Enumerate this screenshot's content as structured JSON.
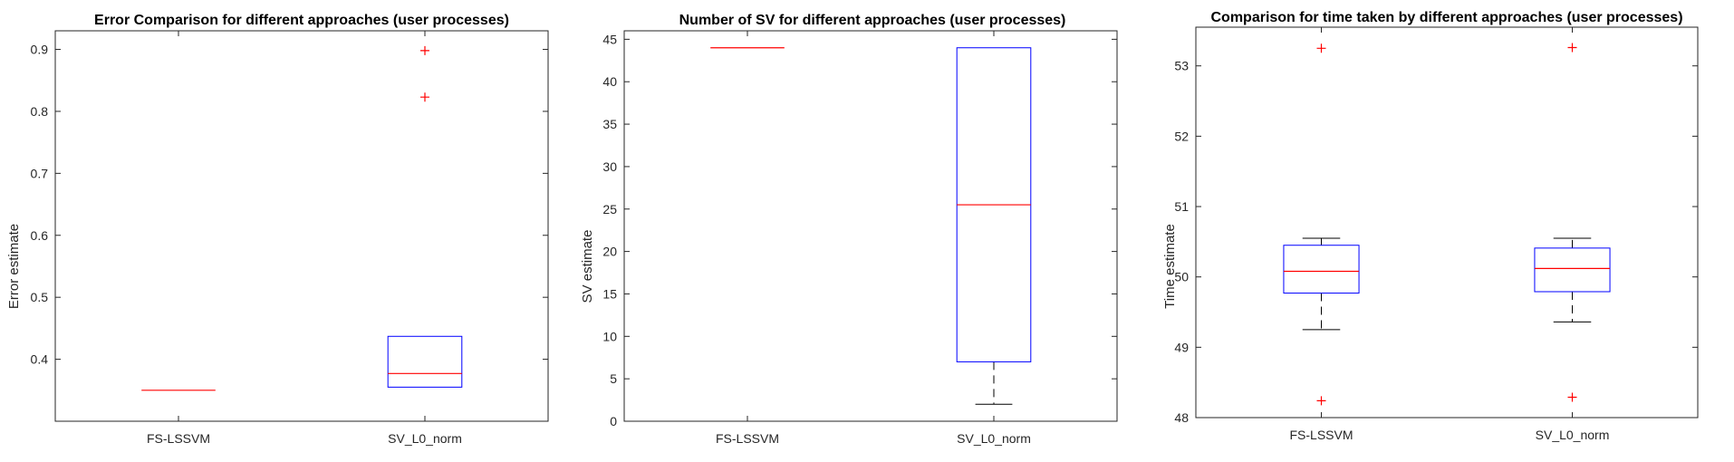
{
  "chart_data": [
    {
      "type": "box",
      "title": "Error Comparison for different approaches (user processes)",
      "xlabel": "",
      "ylabel": "Error estimate",
      "categories": [
        "FS-LSSVM",
        "SV_L0_norm"
      ],
      "ylim": [
        0.3,
        0.93
      ],
      "yticks": [
        "0.4",
        "0.5",
        "0.6",
        "0.7",
        "0.8",
        "0.9"
      ],
      "boxes": [
        {
          "category": "FS-LSSVM",
          "lower_whisker": 0.35,
          "q1": 0.35,
          "median": 0.35,
          "q3": 0.35,
          "upper_whisker": 0.35,
          "outliers": []
        },
        {
          "category": "SV_L0_norm",
          "lower_whisker": 0.355,
          "q1": 0.355,
          "median": 0.377,
          "q3": 0.437,
          "upper_whisker": 0.437,
          "outliers": [
            0.823,
            0.898
          ]
        }
      ]
    },
    {
      "type": "box",
      "title": "Number of SV for different approaches (user processes)",
      "xlabel": "",
      "ylabel": "SV estimate",
      "categories": [
        "FS-LSSVM",
        "SV_L0_norm"
      ],
      "ylim": [
        0,
        46
      ],
      "yticks": [
        "0",
        "5",
        "10",
        "15",
        "20",
        "25",
        "30",
        "35",
        "40",
        "45"
      ],
      "boxes": [
        {
          "category": "FS-LSSVM",
          "lower_whisker": 44,
          "q1": 44,
          "median": 44,
          "q3": 44,
          "upper_whisker": 44,
          "outliers": []
        },
        {
          "category": "SV_L0_norm",
          "lower_whisker": 2,
          "q1": 7,
          "median": 25.5,
          "q3": 44,
          "upper_whisker": 44,
          "outliers": []
        }
      ]
    },
    {
      "type": "box",
      "title": "Comparison for time taken by different approaches (user processes)",
      "xlabel": "",
      "ylabel": "Time estimate",
      "categories": [
        "FS-LSSVM",
        "SV_L0_norm"
      ],
      "ylim": [
        48,
        53.55
      ],
      "yticks": [
        "48",
        "49",
        "50",
        "51",
        "52",
        "53"
      ],
      "boxes": [
        {
          "category": "FS-LSSVM",
          "lower_whisker": 49.25,
          "q1": 49.77,
          "median": 50.08,
          "q3": 50.45,
          "upper_whisker": 50.55,
          "outliers": [
            53.25,
            48.24
          ]
        },
        {
          "category": "SV_L0_norm",
          "lower_whisker": 49.36,
          "q1": 49.79,
          "median": 50.12,
          "q3": 50.41,
          "upper_whisker": 50.55,
          "outliers": [
            53.26,
            48.29
          ]
        }
      ]
    }
  ],
  "colors": {
    "box": "#0000ff",
    "median": "#ff0000",
    "outlier": "#ff0000",
    "whisker": "#000000",
    "axis": "#262626"
  }
}
